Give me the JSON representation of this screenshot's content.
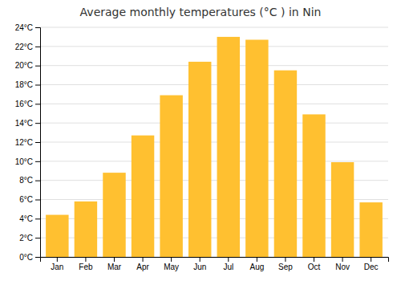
{
  "chart_data": {
    "type": "bar",
    "title": "Average monthly temperatures (°C ) in Nin",
    "categories": [
      "Jan",
      "Feb",
      "Mar",
      "Apr",
      "May",
      "Jun",
      "Jul",
      "Aug",
      "Sep",
      "Oct",
      "Nov",
      "Dec"
    ],
    "values": [
      4.4,
      5.8,
      8.8,
      12.7,
      16.9,
      20.4,
      23.0,
      22.7,
      19.5,
      14.9,
      9.9,
      5.7
    ],
    "color": "#FFC030",
    "ylim": [
      0,
      24
    ],
    "yticks": [
      {
        "value": 0,
        "label": "0°C"
      },
      {
        "value": 2,
        "label": "2°C"
      },
      {
        "value": 4,
        "label": "4°C"
      },
      {
        "value": 6,
        "label": "6°C"
      },
      {
        "value": 8,
        "label": "8°C"
      },
      {
        "value": 10,
        "label": "10°C"
      },
      {
        "value": 12,
        "label": "12°C"
      },
      {
        "value": 14,
        "label": "14°C"
      },
      {
        "value": 16,
        "label": "16°C"
      },
      {
        "value": 18,
        "label": "18°C"
      },
      {
        "value": 20,
        "label": "20°C"
      },
      {
        "value": 22,
        "label": "22°C"
      },
      {
        "value": 24,
        "label": "24°C"
      }
    ],
    "grid": true
  }
}
